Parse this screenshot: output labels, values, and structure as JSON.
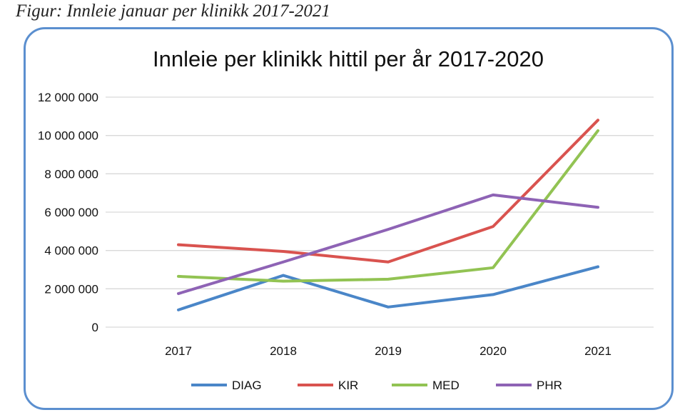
{
  "figure_caption": "Figur: Innleie januar per klinikk 2017-2021",
  "chart_data": {
    "type": "line",
    "title": "Innleie per klinikk hittil per år 2017-2020",
    "xlabel": "",
    "ylabel": "",
    "categories": [
      "2017",
      "2018",
      "2019",
      "2020",
      "2021"
    ],
    "ylim": [
      0,
      12000000
    ],
    "yticks": [
      {
        "value": 0,
        "label": "0"
      },
      {
        "value": 2000000,
        "label": "2 000 000"
      },
      {
        "value": 4000000,
        "label": "4 000 000"
      },
      {
        "value": 6000000,
        "label": "6 000 000"
      },
      {
        "value": 8000000,
        "label": "8 000 000"
      },
      {
        "value": 10000000,
        "label": "10 000 000"
      },
      {
        "value": 12000000,
        "label": "12 000 000"
      }
    ],
    "grid": true,
    "legend_position": "bottom",
    "series": [
      {
        "name": "DIAG",
        "color": "#4a86c8",
        "values": [
          900000,
          2700000,
          1050000,
          1700000,
          3150000
        ]
      },
      {
        "name": "KIR",
        "color": "#d9534f",
        "values": [
          4300000,
          3950000,
          3400000,
          5250000,
          10800000
        ]
      },
      {
        "name": "MED",
        "color": "#92c353",
        "values": [
          2650000,
          2400000,
          2500000,
          3100000,
          10250000
        ]
      },
      {
        "name": "PHR",
        "color": "#8e63b5",
        "values": [
          1750000,
          3400000,
          5100000,
          6900000,
          6250000
        ]
      }
    ]
  }
}
